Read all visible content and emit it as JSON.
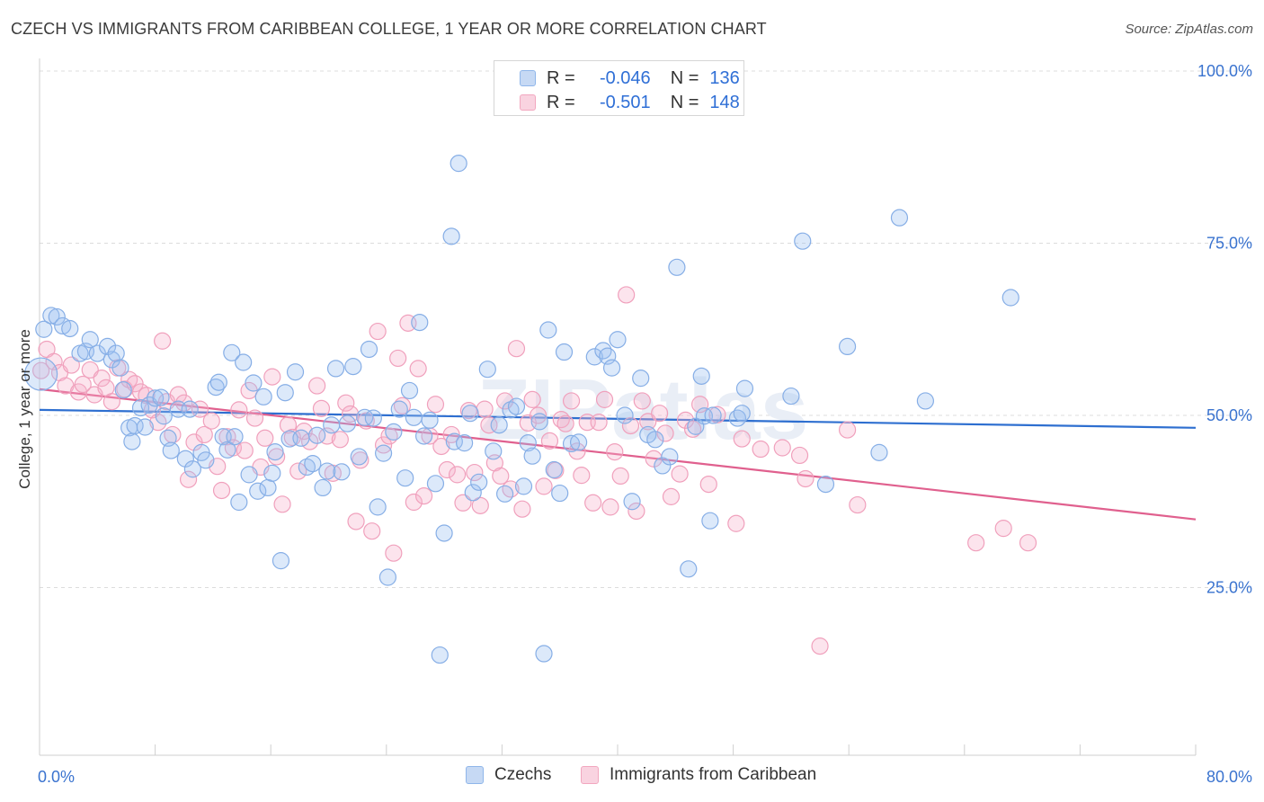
{
  "title": "CZECH VS IMMIGRANTS FROM CARIBBEAN COLLEGE, 1 YEAR OR MORE CORRELATION CHART",
  "source": "Source: ZipAtlas.com",
  "watermark": "ZIPatlas",
  "legend": {
    "r_label": "R =",
    "n_label": "N =",
    "rows": [
      {
        "r": "-0.046",
        "n": "136",
        "color": "#8fb6ea"
      },
      {
        "r": "-0.501",
        "n": "148",
        "color": "#f2a7bf"
      }
    ]
  },
  "bottom_legend": [
    {
      "label": "Czechs",
      "color": "#8fb6ea"
    },
    {
      "label": "Immigrants from Caribbean",
      "color": "#f2a7bf"
    }
  ],
  "chart_data": {
    "type": "scatter",
    "title": "CZECH VS IMMIGRANTS FROM CARIBBEAN COLLEGE, 1 YEAR OR MORE CORRELATION CHART",
    "xlabel": "",
    "ylabel": "College, 1 year or more",
    "xlim": [
      0,
      80
    ],
    "ylim": [
      0,
      105
    ],
    "x_tick_labels": [
      "0.0%",
      "80.0%"
    ],
    "y_ticks": [
      25,
      50,
      75,
      100
    ],
    "y_tick_labels": [
      "25.0%",
      "50.0%",
      "75.0%",
      "100.0%"
    ],
    "grid": true,
    "series": [
      {
        "name": "Czechs",
        "color": "#5b93e0",
        "trend": {
          "x": [
            0,
            80
          ],
          "y": [
            50.8,
            48.2
          ],
          "color": "#2e6fd0"
        },
        "points": [
          [
            0.1,
            56.0
          ],
          [
            0.3,
            62.5
          ],
          [
            0.8,
            64.5
          ],
          [
            1.2,
            64.3
          ],
          [
            1.6,
            63.0
          ],
          [
            2.1,
            62.6
          ],
          [
            2.8,
            59.0
          ],
          [
            3.2,
            59.3
          ],
          [
            3.5,
            61.0
          ],
          [
            4.0,
            59.0
          ],
          [
            4.7,
            60.0
          ],
          [
            5.0,
            58.1
          ],
          [
            5.3,
            59.0
          ],
          [
            5.6,
            56.9
          ],
          [
            5.8,
            53.7
          ],
          [
            6.2,
            48.2
          ],
          [
            6.4,
            46.2
          ],
          [
            6.6,
            48.5
          ],
          [
            7.0,
            51.1
          ],
          [
            7.3,
            48.3
          ],
          [
            7.6,
            51.5
          ],
          [
            8.0,
            52.5
          ],
          [
            8.4,
            52.6
          ],
          [
            8.6,
            49.9
          ],
          [
            8.9,
            46.7
          ],
          [
            9.1,
            44.9
          ],
          [
            9.6,
            50.9
          ],
          [
            10.1,
            43.7
          ],
          [
            10.4,
            50.9
          ],
          [
            10.6,
            42.2
          ],
          [
            11.2,
            44.6
          ],
          [
            11.5,
            43.5
          ],
          [
            12.2,
            54.1
          ],
          [
            12.4,
            54.8
          ],
          [
            12.7,
            46.9
          ],
          [
            13.0,
            45.0
          ],
          [
            13.3,
            59.1
          ],
          [
            13.5,
            46.9
          ],
          [
            13.8,
            37.4
          ],
          [
            14.1,
            57.7
          ],
          [
            14.5,
            41.4
          ],
          [
            14.8,
            54.7
          ],
          [
            15.1,
            39.0
          ],
          [
            15.5,
            52.7
          ],
          [
            15.8,
            39.5
          ],
          [
            16.1,
            41.6
          ],
          [
            16.3,
            44.7
          ],
          [
            16.7,
            28.9
          ],
          [
            17.0,
            53.3
          ],
          [
            17.3,
            46.6
          ],
          [
            17.7,
            56.3
          ],
          [
            18.1,
            46.7
          ],
          [
            18.5,
            42.5
          ],
          [
            18.9,
            43.0
          ],
          [
            19.2,
            47.1
          ],
          [
            19.6,
            39.5
          ],
          [
            19.9,
            41.9
          ],
          [
            20.2,
            48.6
          ],
          [
            20.5,
            56.8
          ],
          [
            20.9,
            41.8
          ],
          [
            21.3,
            48.8
          ],
          [
            21.7,
            57.1
          ],
          [
            22.1,
            44.0
          ],
          [
            22.5,
            49.7
          ],
          [
            22.8,
            59.6
          ],
          [
            23.1,
            49.6
          ],
          [
            23.4,
            36.7
          ],
          [
            23.8,
            44.5
          ],
          [
            24.1,
            26.5
          ],
          [
            24.5,
            47.6
          ],
          [
            24.9,
            50.9
          ],
          [
            25.3,
            40.9
          ],
          [
            25.6,
            53.6
          ],
          [
            25.9,
            49.7
          ],
          [
            26.3,
            63.5
          ],
          [
            26.6,
            47.0
          ],
          [
            27.0,
            49.3
          ],
          [
            27.4,
            40.1
          ],
          [
            27.7,
            15.2
          ],
          [
            28.0,
            32.9
          ],
          [
            28.5,
            76.0
          ],
          [
            28.7,
            46.2
          ],
          [
            29.0,
            86.6
          ],
          [
            29.4,
            46.0
          ],
          [
            29.8,
            50.3
          ],
          [
            30.0,
            38.8
          ],
          [
            30.4,
            40.3
          ],
          [
            31.0,
            56.7
          ],
          [
            31.4,
            44.8
          ],
          [
            31.8,
            48.6
          ],
          [
            32.2,
            38.6
          ],
          [
            32.6,
            50.8
          ],
          [
            33.0,
            51.3
          ],
          [
            33.5,
            39.7
          ],
          [
            33.8,
            46.0
          ],
          [
            34.1,
            44.1
          ],
          [
            34.6,
            49.1
          ],
          [
            34.9,
            15.4
          ],
          [
            35.2,
            62.4
          ],
          [
            35.6,
            42.1
          ],
          [
            36.0,
            38.7
          ],
          [
            36.3,
            59.2
          ],
          [
            36.8,
            45.9
          ],
          [
            37.3,
            46.1
          ],
          [
            38.4,
            58.5
          ],
          [
            39.0,
            59.4
          ],
          [
            39.3,
            58.6
          ],
          [
            39.6,
            56.9
          ],
          [
            40.0,
            61.0
          ],
          [
            40.5,
            50.0
          ],
          [
            41.0,
            37.5
          ],
          [
            41.6,
            55.4
          ],
          [
            42.1,
            47.2
          ],
          [
            42.6,
            46.5
          ],
          [
            43.1,
            42.7
          ],
          [
            43.6,
            44.0
          ],
          [
            44.1,
            71.5
          ],
          [
            44.9,
            27.7
          ],
          [
            45.4,
            48.4
          ],
          [
            45.8,
            55.7
          ],
          [
            46.0,
            49.9
          ],
          [
            46.4,
            34.7
          ],
          [
            46.6,
            50.0
          ],
          [
            48.8,
            53.9
          ],
          [
            48.3,
            49.6
          ],
          [
            48.6,
            50.3
          ],
          [
            52.0,
            52.8
          ],
          [
            52.8,
            75.3
          ],
          [
            54.4,
            40.0
          ],
          [
            55.9,
            60.0
          ],
          [
            58.1,
            44.6
          ],
          [
            59.5,
            78.7
          ],
          [
            61.3,
            52.1
          ],
          [
            67.2,
            67.1
          ]
        ]
      },
      {
        "name": "Immigrants from Caribbean",
        "color": "#ef8fb0",
        "trend": {
          "x": [
            0,
            80
          ],
          "y": [
            53.8,
            34.9
          ],
          "color": "#e0608e"
        },
        "points": [
          [
            0.1,
            56.5
          ],
          [
            0.5,
            59.6
          ],
          [
            1.0,
            57.8
          ],
          [
            1.4,
            56.2
          ],
          [
            1.8,
            54.3
          ],
          [
            2.2,
            57.3
          ],
          [
            2.7,
            53.4
          ],
          [
            3.0,
            54.5
          ],
          [
            3.5,
            56.6
          ],
          [
            3.8,
            53.0
          ],
          [
            4.3,
            55.4
          ],
          [
            4.6,
            54.0
          ],
          [
            5.0,
            52.0
          ],
          [
            5.4,
            56.9
          ],
          [
            5.9,
            53.8
          ],
          [
            6.2,
            55.2
          ],
          [
            6.6,
            54.6
          ],
          [
            7.0,
            53.4
          ],
          [
            7.4,
            52.9
          ],
          [
            7.8,
            50.8
          ],
          [
            8.2,
            49.0
          ],
          [
            8.5,
            60.8
          ],
          [
            8.8,
            52.0
          ],
          [
            9.2,
            47.2
          ],
          [
            9.6,
            53.0
          ],
          [
            10.0,
            51.8
          ],
          [
            10.3,
            40.7
          ],
          [
            10.7,
            46.1
          ],
          [
            11.1,
            50.9
          ],
          [
            11.4,
            47.2
          ],
          [
            11.9,
            49.2
          ],
          [
            12.3,
            42.6
          ],
          [
            12.6,
            39.1
          ],
          [
            13.0,
            46.9
          ],
          [
            13.4,
            45.3
          ],
          [
            13.8,
            50.8
          ],
          [
            14.2,
            44.9
          ],
          [
            14.5,
            53.6
          ],
          [
            14.9,
            49.6
          ],
          [
            15.3,
            42.5
          ],
          [
            15.6,
            46.7
          ],
          [
            16.1,
            55.6
          ],
          [
            16.4,
            44.0
          ],
          [
            16.8,
            37.1
          ],
          [
            17.2,
            48.6
          ],
          [
            17.5,
            46.8
          ],
          [
            17.9,
            41.9
          ],
          [
            18.3,
            47.7
          ],
          [
            18.7,
            46.2
          ],
          [
            19.2,
            54.3
          ],
          [
            19.5,
            51.0
          ],
          [
            19.9,
            47.0
          ],
          [
            20.3,
            41.6
          ],
          [
            20.8,
            46.5
          ],
          [
            21.2,
            51.8
          ],
          [
            21.5,
            50.2
          ],
          [
            21.9,
            34.6
          ],
          [
            22.2,
            43.5
          ],
          [
            22.6,
            49.2
          ],
          [
            23.0,
            33.2
          ],
          [
            23.4,
            62.2
          ],
          [
            23.8,
            45.7
          ],
          [
            24.2,
            47.0
          ],
          [
            24.5,
            30.0
          ],
          [
            24.8,
            58.3
          ],
          [
            25.1,
            51.4
          ],
          [
            25.5,
            63.4
          ],
          [
            25.9,
            37.4
          ],
          [
            26.2,
            56.8
          ],
          [
            26.6,
            38.3
          ],
          [
            27.0,
            47.0
          ],
          [
            27.4,
            51.6
          ],
          [
            27.8,
            45.5
          ],
          [
            28.2,
            42.1
          ],
          [
            28.5,
            47.2
          ],
          [
            28.9,
            41.4
          ],
          [
            29.3,
            37.3
          ],
          [
            29.7,
            50.7
          ],
          [
            30.1,
            41.7
          ],
          [
            30.5,
            36.9
          ],
          [
            30.8,
            50.9
          ],
          [
            31.1,
            48.6
          ],
          [
            31.5,
            43.1
          ],
          [
            31.9,
            41.2
          ],
          [
            32.2,
            52.1
          ],
          [
            32.6,
            39.3
          ],
          [
            33.0,
            59.7
          ],
          [
            33.4,
            36.4
          ],
          [
            33.8,
            48.9
          ],
          [
            34.1,
            52.3
          ],
          [
            34.5,
            50.0
          ],
          [
            34.9,
            39.7
          ],
          [
            35.3,
            46.3
          ],
          [
            35.7,
            42.0
          ],
          [
            36.1,
            49.4
          ],
          [
            36.4,
            48.8
          ],
          [
            36.8,
            52.1
          ],
          [
            37.2,
            44.8
          ],
          [
            37.5,
            41.3
          ],
          [
            37.9,
            49.0
          ],
          [
            38.3,
            37.3
          ],
          [
            38.7,
            49.0
          ],
          [
            39.1,
            52.3
          ],
          [
            39.5,
            36.7
          ],
          [
            39.8,
            44.7
          ],
          [
            40.2,
            41.2
          ],
          [
            40.6,
            67.5
          ],
          [
            40.9,
            48.5
          ],
          [
            41.3,
            36.1
          ],
          [
            41.7,
            52.1
          ],
          [
            42.1,
            49.1
          ],
          [
            42.5,
            43.7
          ],
          [
            42.9,
            50.3
          ],
          [
            43.3,
            47.4
          ],
          [
            43.7,
            38.2
          ],
          [
            44.3,
            41.5
          ],
          [
            44.7,
            49.3
          ],
          [
            45.2,
            48.0
          ],
          [
            45.7,
            51.6
          ],
          [
            46.3,
            40.0
          ],
          [
            46.9,
            50.1
          ],
          [
            48.2,
            34.3
          ],
          [
            48.6,
            46.6
          ],
          [
            49.9,
            45.1
          ],
          [
            51.4,
            45.3
          ],
          [
            52.6,
            44.2
          ],
          [
            53.0,
            40.8
          ],
          [
            54.0,
            16.5
          ],
          [
            55.9,
            47.9
          ],
          [
            56.6,
            37.0
          ],
          [
            64.8,
            31.5
          ],
          [
            66.7,
            33.6
          ],
          [
            68.4,
            31.5
          ]
        ]
      }
    ]
  }
}
